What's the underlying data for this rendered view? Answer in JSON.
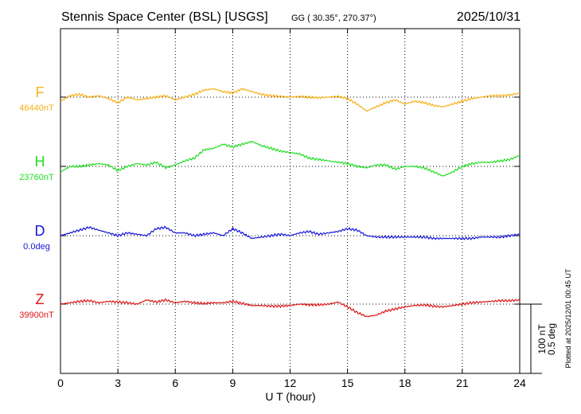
{
  "header": {
    "title": "Stennis Space Center (BSL)  [USGS]",
    "coords": "GG ( 30.35°, 270.37°)",
    "date": "2025/10/31"
  },
  "side_note": "Plotted at 2025/12/01 00:45 UT",
  "scale_bar": {
    "nt_label": "100 nT",
    "deg_label": "0.5 deg"
  },
  "chart_data": {
    "type": "line",
    "xlabel": "U T (hour)",
    "xlim": [
      0,
      24
    ],
    "xticks": [
      0,
      3,
      6,
      9,
      12,
      15,
      18,
      21,
      24
    ],
    "grid": true,
    "series": [
      {
        "name": "F",
        "baseline_label": "46440nT",
        "baseline": 46440,
        "unit": "nT",
        "color": "#f5b016",
        "x": [
          0,
          0.5,
          1,
          1.5,
          2,
          2.5,
          3,
          3.5,
          4,
          4.5,
          5,
          5.5,
          6,
          6.5,
          7,
          7.5,
          8,
          8.5,
          9,
          9.5,
          10,
          10.5,
          11,
          11.5,
          12,
          12.5,
          13,
          13.5,
          14,
          14.5,
          15,
          15.5,
          16,
          16.5,
          17,
          17.5,
          18,
          18.5,
          19,
          19.5,
          20,
          20.5,
          21,
          21.5,
          22,
          22.5,
          23,
          23.5,
          24
        ],
        "values": [
          46434,
          46442,
          46444,
          46440,
          46442,
          46438,
          46432,
          46440,
          46436,
          46438,
          46440,
          46442,
          46436,
          46440,
          46444,
          46450,
          46452,
          46448,
          46446,
          46452,
          46448,
          46444,
          46442,
          46441,
          46440,
          46441,
          46440,
          46439,
          46440,
          46441,
          46438,
          46430,
          46420,
          46426,
          46432,
          46436,
          46430,
          46434,
          46432,
          46428,
          46426,
          46430,
          46434,
          46438,
          46440,
          46442,
          46442,
          46443,
          46446
        ]
      },
      {
        "name": "H",
        "baseline_label": "23760nT",
        "baseline": 23760,
        "unit": "nT",
        "color": "#22dd22",
        "x": [
          0,
          0.5,
          1,
          1.5,
          2,
          2.5,
          3,
          3.5,
          4,
          4.5,
          5,
          5.5,
          6,
          6.5,
          7,
          7.5,
          8,
          8.5,
          9,
          9.5,
          10,
          10.5,
          11,
          11.5,
          12,
          12.5,
          13,
          13.5,
          14,
          14.5,
          15,
          15.5,
          16,
          16.5,
          17,
          17.5,
          18,
          18.5,
          19,
          19.5,
          20,
          20.5,
          21,
          21.5,
          22,
          22.5,
          23,
          23.5,
          24
        ],
        "values": [
          23752,
          23760,
          23760,
          23762,
          23764,
          23762,
          23754,
          23760,
          23764,
          23762,
          23766,
          23758,
          23762,
          23768,
          23772,
          23784,
          23786,
          23792,
          23788,
          23792,
          23796,
          23790,
          23786,
          23782,
          23780,
          23778,
          23772,
          23770,
          23768,
          23766,
          23764,
          23760,
          23758,
          23762,
          23762,
          23756,
          23760,
          23760,
          23758,
          23752,
          23746,
          23752,
          23760,
          23764,
          23766,
          23766,
          23768,
          23770,
          23776
        ]
      },
      {
        "name": "D",
        "baseline_label": "0.0deg",
        "baseline": 0.0,
        "unit": "deg",
        "color": "#1515dd",
        "x": [
          0,
          0.5,
          1,
          1.5,
          2,
          2.5,
          3,
          3.5,
          4,
          4.5,
          5,
          5.5,
          6,
          6.5,
          7,
          7.5,
          8,
          8.5,
          9,
          9.5,
          10,
          10.5,
          11,
          11.5,
          12,
          12.5,
          13,
          13.5,
          14,
          14.5,
          15,
          15.5,
          16,
          16.5,
          17,
          17.5,
          18,
          18.5,
          19,
          19.5,
          20,
          20.5,
          21,
          21.5,
          22,
          22.5,
          23,
          23.5,
          24
        ],
        "values": [
          0.0,
          0.02,
          0.04,
          0.06,
          0.04,
          0.02,
          0.0,
          0.02,
          0.01,
          0.0,
          0.05,
          0.06,
          0.02,
          0.02,
          0.0,
          0.01,
          0.02,
          0.0,
          0.05,
          0.02,
          -0.02,
          -0.01,
          0.0,
          0.01,
          0.0,
          0.02,
          0.03,
          0.01,
          0.02,
          0.03,
          0.05,
          0.04,
          0.0,
          -0.01,
          -0.01,
          -0.01,
          -0.01,
          -0.01,
          -0.01,
          -0.02,
          -0.02,
          -0.02,
          -0.02,
          -0.02,
          -0.01,
          -0.01,
          -0.01,
          0.0,
          0.01
        ]
      },
      {
        "name": "Z",
        "baseline_label": "39900nT",
        "baseline": 39900,
        "unit": "nT",
        "color": "#dd1515",
        "x": [
          0,
          0.5,
          1,
          1.5,
          2,
          2.5,
          3,
          3.5,
          4,
          4.5,
          5,
          5.5,
          6,
          6.5,
          7,
          7.5,
          8,
          8.5,
          9,
          9.5,
          10,
          10.5,
          11,
          11.5,
          12,
          12.5,
          13,
          13.5,
          14,
          14.5,
          15,
          15.5,
          16,
          16.5,
          17,
          17.5,
          18,
          18.5,
          19,
          19.5,
          20,
          20.5,
          21,
          21.5,
          22,
          22.5,
          23,
          23.5,
          24
        ],
        "values": [
          39900,
          39902,
          39904,
          39905,
          39902,
          39904,
          39903,
          39902,
          39900,
          39906,
          39903,
          39906,
          39902,
          39904,
          39902,
          39901,
          39902,
          39902,
          39904,
          39901,
          39898,
          39898,
          39897,
          39897,
          39898,
          39900,
          39899,
          39899,
          39900,
          39903,
          39896,
          39888,
          39882,
          39884,
          39890,
          39893,
          39896,
          39898,
          39899,
          39897,
          39896,
          39898,
          39900,
          39902,
          39903,
          39904,
          39905,
          39905,
          39906
        ]
      }
    ]
  }
}
